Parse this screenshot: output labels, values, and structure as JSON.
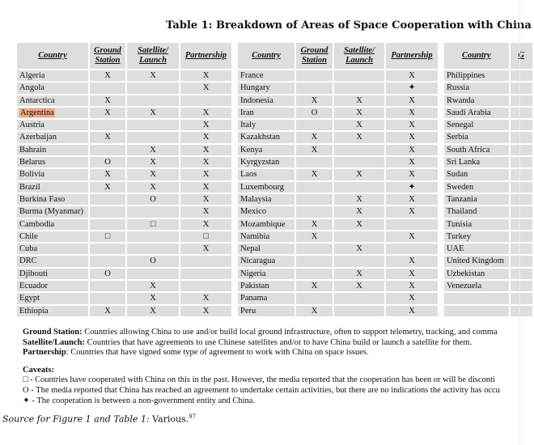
{
  "title": "Table 1: Breakdown of Areas of Space Cooperation with China",
  "headers": {
    "country": "Country",
    "ground": "Ground Station",
    "ground_1": "Ground",
    "ground_2": "Station",
    "satellite_1": "Satellite/",
    "satellite_2": "Launch",
    "partnership": "Partnership",
    "partial": "G"
  },
  "symbols": {
    "x": "X",
    "circle": "O",
    "square": "□",
    "star": "✦"
  },
  "table1": [
    {
      "country": "Algeria",
      "ground": "X",
      "satellite": "X",
      "partnership": "X"
    },
    {
      "country": "Angola",
      "ground": "",
      "satellite": "",
      "partnership": "X"
    },
    {
      "country": "Antarctica",
      "ground": "X",
      "satellite": "",
      "partnership": ""
    },
    {
      "country": "Argentina",
      "ground": "X",
      "satellite": "X",
      "partnership": "X",
      "highlight": true
    },
    {
      "country": "Austria",
      "ground": "",
      "satellite": "",
      "partnership": "X"
    },
    {
      "country": "Azerbaijan",
      "ground": "X",
      "satellite": "",
      "partnership": "X"
    },
    {
      "country": "Bahrain",
      "ground": "",
      "satellite": "X",
      "partnership": "X"
    },
    {
      "country": "Belarus",
      "ground": "O",
      "satellite": "X",
      "partnership": "X"
    },
    {
      "country": "Bolivia",
      "ground": "X",
      "satellite": "X",
      "partnership": "X"
    },
    {
      "country": "Brazil",
      "ground": "X",
      "satellite": "X",
      "partnership": "X"
    },
    {
      "country": "Burkina Faso",
      "ground": "",
      "satellite": "O",
      "partnership": "X"
    },
    {
      "country": "Burma (Myanmar)",
      "ground": "",
      "satellite": "",
      "partnership": "X"
    },
    {
      "country": "Cambodia",
      "ground": "",
      "satellite": "□",
      "partnership": "X"
    },
    {
      "country": "Chile",
      "ground": "□",
      "satellite": "",
      "partnership": "□"
    },
    {
      "country": "Cuba",
      "ground": "",
      "satellite": "",
      "partnership": "X"
    },
    {
      "country": "DRC",
      "ground": "",
      "satellite": "O",
      "partnership": ""
    },
    {
      "country": "Djibouti",
      "ground": "O",
      "satellite": "",
      "partnership": ""
    },
    {
      "country": "Ecuador",
      "ground": "",
      "satellite": "X",
      "partnership": ""
    },
    {
      "country": "Egypt",
      "ground": "",
      "satellite": "X",
      "partnership": "X"
    },
    {
      "country": "Ethiopia",
      "ground": "X",
      "satellite": "X",
      "partnership": "X"
    }
  ],
  "table2": [
    {
      "country": "France",
      "ground": "",
      "satellite": "",
      "partnership": "X"
    },
    {
      "country": "Hungary",
      "ground": "",
      "satellite": "",
      "partnership": "✦"
    },
    {
      "country": "Indonesia",
      "ground": "X",
      "satellite": "X",
      "partnership": "X"
    },
    {
      "country": "Iran",
      "ground": "O",
      "satellite": "X",
      "partnership": "X"
    },
    {
      "country": "Italy",
      "ground": "",
      "satellite": "X",
      "partnership": "X"
    },
    {
      "country": "Kazakhstan",
      "ground": "X",
      "satellite": "X",
      "partnership": "X"
    },
    {
      "country": "Kenya",
      "ground": "X",
      "satellite": "",
      "partnership": "X"
    },
    {
      "country": "Kyrgyzstan",
      "ground": "",
      "satellite": "",
      "partnership": "X"
    },
    {
      "country": "Laos",
      "ground": "X",
      "satellite": "X",
      "partnership": "X"
    },
    {
      "country": "Luxembourg",
      "ground": "",
      "satellite": "",
      "partnership": "✦"
    },
    {
      "country": "Malaysia",
      "ground": "",
      "satellite": "X",
      "partnership": "X"
    },
    {
      "country": "Mexico",
      "ground": "",
      "satellite": "X",
      "partnership": "X"
    },
    {
      "country": "Mozambique",
      "ground": "X",
      "satellite": "X",
      "partnership": ""
    },
    {
      "country": "Namibia",
      "ground": "X",
      "satellite": "",
      "partnership": "X"
    },
    {
      "country": "Nepal",
      "ground": "",
      "satellite": "X",
      "partnership": ""
    },
    {
      "country": "Nicaragua",
      "ground": "",
      "satellite": "",
      "partnership": "X"
    },
    {
      "country": "Nigeria",
      "ground": "",
      "satellite": "X",
      "partnership": "X"
    },
    {
      "country": "Pakistan",
      "ground": "X",
      "satellite": "X",
      "partnership": "X"
    },
    {
      "country": "Panama",
      "ground": "",
      "satellite": "",
      "partnership": "X"
    },
    {
      "country": "Peru",
      "ground": "X",
      "satellite": "",
      "partnership": "X"
    }
  ],
  "table3": [
    {
      "country": "Philippines"
    },
    {
      "country": "Russia"
    },
    {
      "country": "Rwanda"
    },
    {
      "country": "Saudi Arabia"
    },
    {
      "country": "Senegal"
    },
    {
      "country": "Serbia"
    },
    {
      "country": "South Africa"
    },
    {
      "country": "Sri Lanka"
    },
    {
      "country": "Sudan"
    },
    {
      "country": "Sweden"
    },
    {
      "country": "Tanzania"
    },
    {
      "country": "Thailand"
    },
    {
      "country": "Tunisia"
    },
    {
      "country": "Turkey"
    },
    {
      "country": "UAE"
    },
    {
      "country": "United Kingdom"
    },
    {
      "country": "Uzbekistan"
    },
    {
      "country": "Venezuela"
    },
    {
      "country": ""
    },
    {
      "country": ""
    }
  ],
  "definitions": [
    {
      "term": "Ground Station:",
      "text": " Countries allowing China to use and/or build local ground infrastructure, often to support telemetry, tracking, and comma"
    },
    {
      "term": "Satellite/Launch:",
      "text": " Countries that have agreements to use Chinese satellites and/or to have China build or launch a satellite for them."
    },
    {
      "term": "Partnership",
      "text": ": Countries that have signed some type of agreement to work with China on space issues."
    }
  ],
  "caveats_label": "Caveats:",
  "caveats": [
    {
      "symbol": "□",
      "text": " - Countries have cooperated with China on this in the past. However, the media reported that the cooperation has been or will be disconti"
    },
    {
      "symbol": "O",
      "text": " - The media reported that China has reached an agreement to undertake certain activities, but there are no indications the activity has occu"
    },
    {
      "symbol": "✦",
      "text": " - The cooperation is between a non-government entity and China."
    }
  ],
  "source": {
    "label": "Source for Figure 1 and Table 1:",
    "text": " Various.",
    "footnote": "97"
  }
}
